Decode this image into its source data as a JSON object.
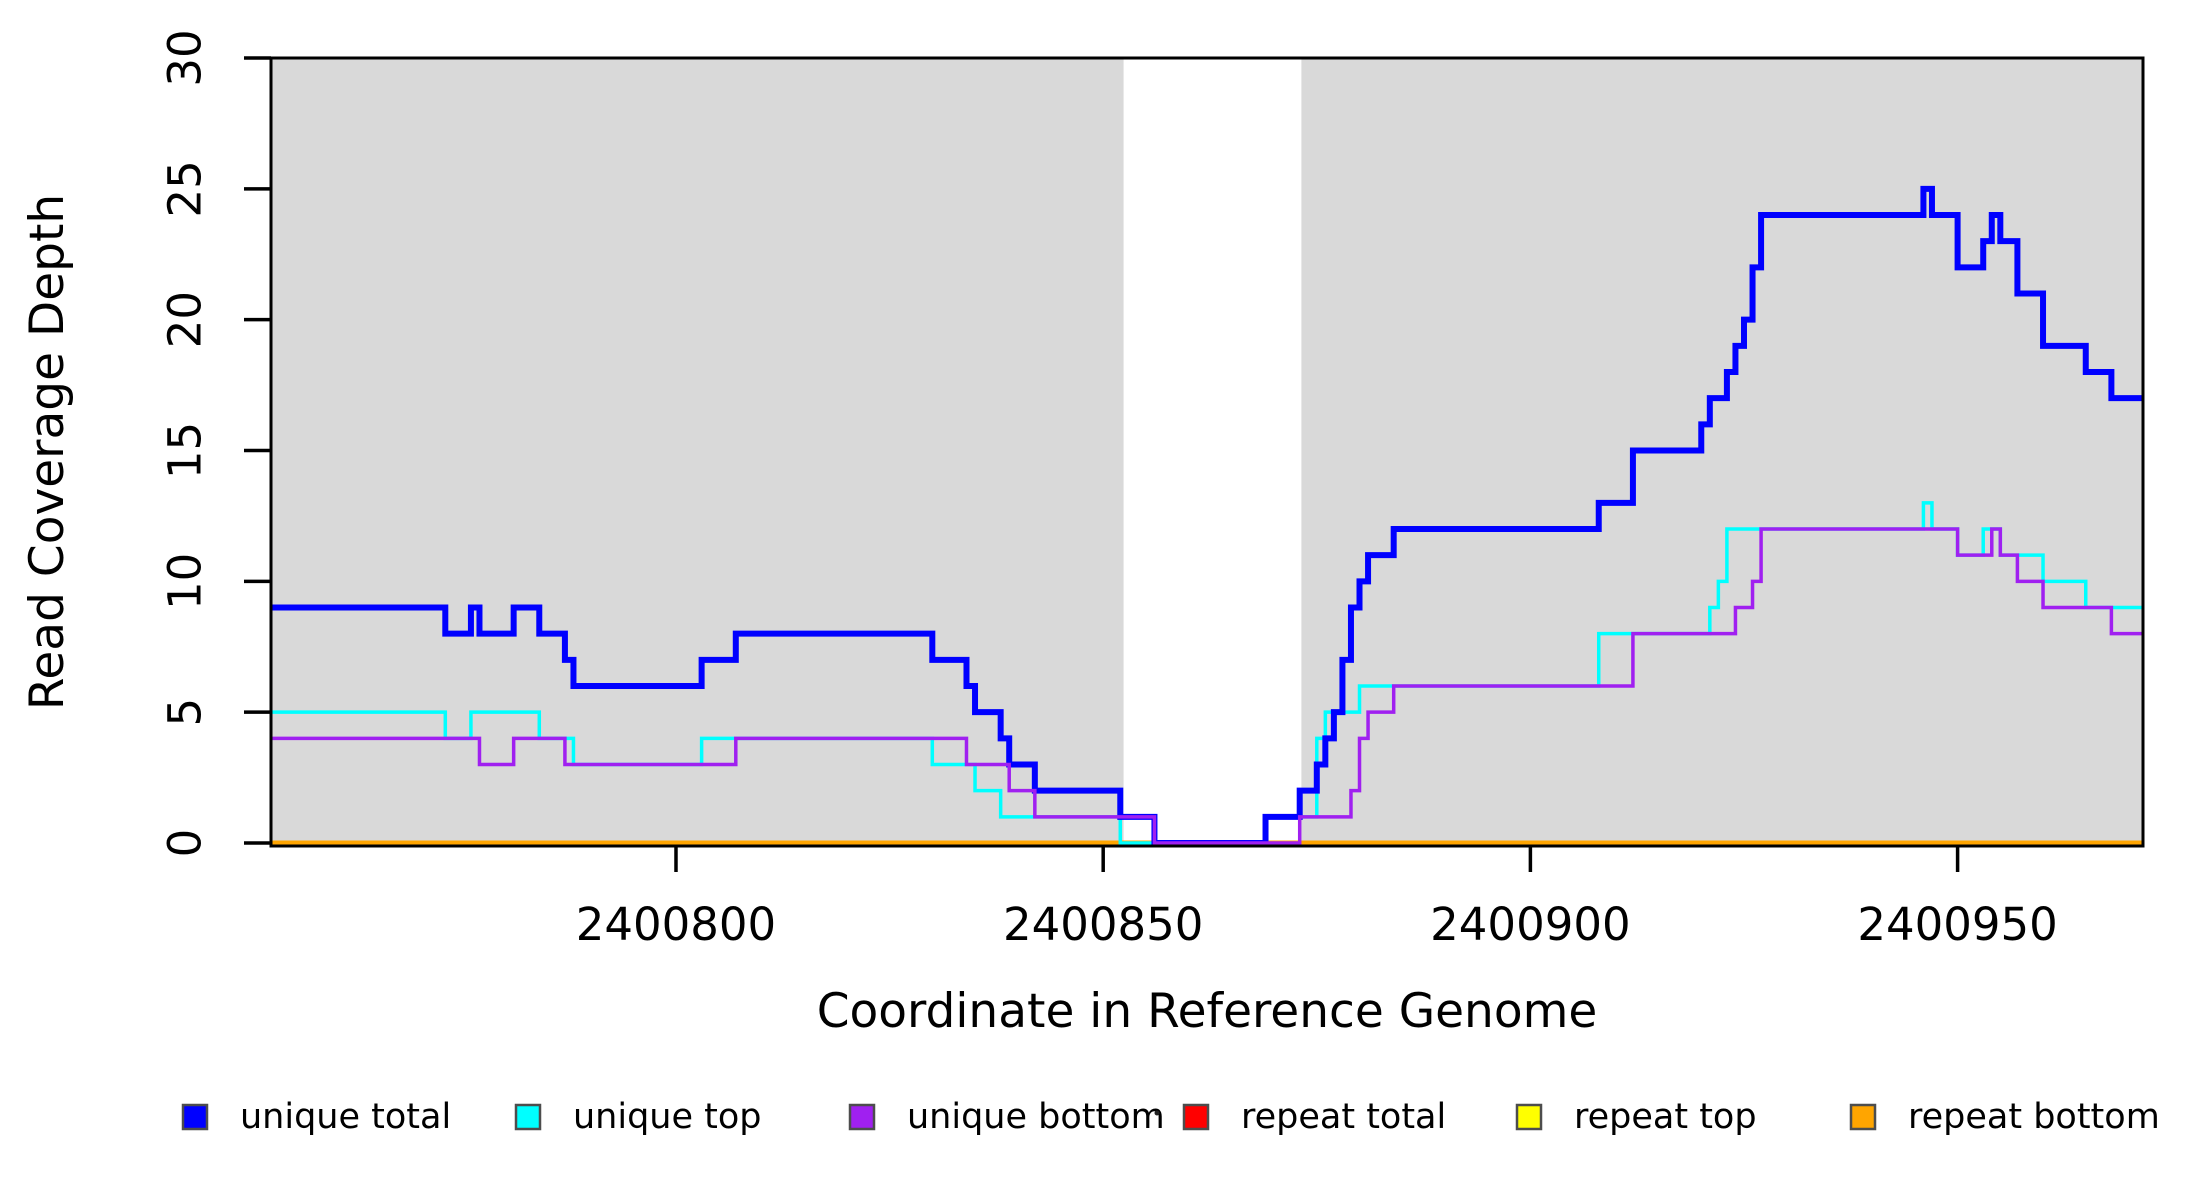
{
  "chart_data": {
    "type": "line",
    "subtype": "step",
    "title": "",
    "xlabel": "Coordinate in Reference Genome",
    "ylabel": "Read Coverage Depth",
    "xlim": [
      2400752.6,
      2400971.7
    ],
    "ylim": [
      0,
      30
    ],
    "x_ticks": [
      2400800,
      2400850,
      2400900,
      2400950
    ],
    "x_tick_labels": [
      "2400800",
      "2400850",
      "2400900",
      "2400950"
    ],
    "y_ticks": [
      0,
      5,
      10,
      15,
      20,
      25,
      30
    ],
    "y_tick_labels": [
      "0",
      "5",
      "10",
      "15",
      "20",
      "25",
      "30"
    ],
    "grid": false,
    "legend_position": "bottom",
    "plot_bg_color": "#ffffff",
    "band_color": "#d9d9d9",
    "background_bands": [
      {
        "from": 2400752.6,
        "to": 2400852.4,
        "color": "#d9d9d9"
      },
      {
        "from": 2400852.4,
        "to": 2400873.2,
        "color": "#ffffff"
      },
      {
        "from": 2400873.2,
        "to": 2400971.7,
        "color": "#d9d9d9"
      }
    ],
    "series": [
      {
        "name": "repeat total",
        "color": "#ff0000",
        "width": 5,
        "steps": [
          [
            2400752.6,
            0
          ],
          [
            2400971.7,
            0
          ]
        ]
      },
      {
        "name": "repeat top",
        "color": "#ffff00",
        "width": 5,
        "steps": [
          [
            2400752.6,
            0
          ],
          [
            2400971.7,
            0
          ]
        ]
      },
      {
        "name": "repeat bottom",
        "color": "#ffa500",
        "width": 5,
        "steps": [
          [
            2400752.6,
            0
          ],
          [
            2400971.7,
            0
          ]
        ]
      },
      {
        "name": "unique top",
        "color": "#00ffff",
        "width": 3.5,
        "steps": [
          [
            2400752.6,
            5
          ],
          [
            2400773,
            4
          ],
          [
            2400776,
            5
          ],
          [
            2400784,
            4
          ],
          [
            2400788,
            3
          ],
          [
            2400803,
            4
          ],
          [
            2400830,
            3
          ],
          [
            2400835,
            2
          ],
          [
            2400838,
            1
          ],
          [
            2400852,
            0
          ],
          [
            2400869,
            1
          ],
          [
            2400875,
            4
          ],
          [
            2400876,
            5
          ],
          [
            2400880,
            6
          ],
          [
            2400908,
            8
          ],
          [
            2400921,
            9
          ],
          [
            2400922,
            10
          ],
          [
            2400923,
            12
          ],
          [
            2400946,
            13
          ],
          [
            2400947,
            12
          ],
          [
            2400950,
            11
          ],
          [
            2400953,
            12
          ],
          [
            2400955,
            11
          ],
          [
            2400960,
            10
          ],
          [
            2400965,
            9
          ],
          [
            2400971.7,
            9
          ]
        ]
      },
      {
        "name": "unique total",
        "color": "#0000ff",
        "width": 6,
        "steps": [
          [
            2400752.6,
            9
          ],
          [
            2400773,
            8
          ],
          [
            2400776,
            9
          ],
          [
            2400777,
            8
          ],
          [
            2400781,
            9
          ],
          [
            2400784,
            8
          ],
          [
            2400787,
            7
          ],
          [
            2400788,
            6
          ],
          [
            2400803,
            7
          ],
          [
            2400807,
            8
          ],
          [
            2400830,
            7
          ],
          [
            2400834,
            6
          ],
          [
            2400835,
            5
          ],
          [
            2400838,
            4
          ],
          [
            2400839,
            3
          ],
          [
            2400842,
            2
          ],
          [
            2400852,
            1
          ],
          [
            2400856,
            0
          ],
          [
            2400869,
            1
          ],
          [
            2400873,
            2
          ],
          [
            2400875,
            3
          ],
          [
            2400876,
            4
          ],
          [
            2400877,
            5
          ],
          [
            2400878,
            7
          ],
          [
            2400879,
            9
          ],
          [
            2400880,
            10
          ],
          [
            2400881,
            11
          ],
          [
            2400884,
            12
          ],
          [
            2400908,
            13
          ],
          [
            2400912,
            15
          ],
          [
            2400920,
            16
          ],
          [
            2400921,
            17
          ],
          [
            2400923,
            18
          ],
          [
            2400924,
            19
          ],
          [
            2400925,
            20
          ],
          [
            2400926,
            22
          ],
          [
            2400927,
            24
          ],
          [
            2400946,
            25
          ],
          [
            2400947,
            24
          ],
          [
            2400950,
            22
          ],
          [
            2400953,
            23
          ],
          [
            2400954,
            24
          ],
          [
            2400955,
            23
          ],
          [
            2400957,
            21
          ],
          [
            2400960,
            19
          ],
          [
            2400965,
            18
          ],
          [
            2400968,
            17
          ],
          [
            2400971.7,
            17
          ]
        ]
      },
      {
        "name": "unique bottom",
        "color": "#a020f0",
        "width": 3.5,
        "steps": [
          [
            2400752.6,
            4
          ],
          [
            2400777,
            3
          ],
          [
            2400781,
            4
          ],
          [
            2400787,
            3
          ],
          [
            2400807,
            4
          ],
          [
            2400834,
            3
          ],
          [
            2400839,
            2
          ],
          [
            2400842,
            1
          ],
          [
            2400856,
            0
          ],
          [
            2400873,
            1
          ],
          [
            2400879,
            2
          ],
          [
            2400880,
            4
          ],
          [
            2400881,
            5
          ],
          [
            2400884,
            6
          ],
          [
            2400912,
            8
          ],
          [
            2400924,
            9
          ],
          [
            2400926,
            10
          ],
          [
            2400927,
            12
          ],
          [
            2400950,
            11
          ],
          [
            2400954,
            12
          ],
          [
            2400955,
            11
          ],
          [
            2400957,
            10
          ],
          [
            2400960,
            9
          ],
          [
            2400968,
            8
          ],
          [
            2400971.7,
            8
          ]
        ]
      }
    ],
    "legend": [
      {
        "label": "unique total",
        "color": "#0000ff"
      },
      {
        "label": "unique top",
        "color": "#00ffff"
      },
      {
        "label": "unique bottom",
        "color": "#a020f0"
      },
      {
        "label": "repeat total",
        "color": "#ff0000"
      },
      {
        "label": "repeat top",
        "color": "#ffff00"
      },
      {
        "label": "repeat bottom",
        "color": "#ffa500"
      }
    ]
  }
}
